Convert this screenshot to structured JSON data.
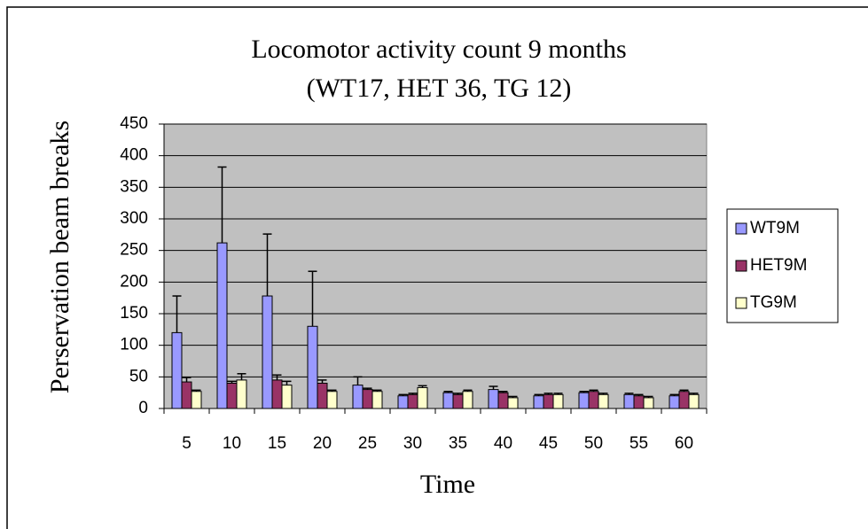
{
  "chart_data": {
    "type": "bar",
    "title": [
      "Locomotor activity count 9 months",
      "(WT17, HET 36, TG 12)"
    ],
    "x_label": "Time",
    "y_label": "Perservation beam breaks",
    "categories": [
      "5",
      "10",
      "15",
      "20",
      "25",
      "30",
      "35",
      "40",
      "45",
      "50",
      "55",
      "60"
    ],
    "series": [
      {
        "name": "WT9M",
        "color": "#9999ff",
        "values": [
          120,
          262,
          178,
          130,
          37,
          20,
          25,
          30,
          20,
          25,
          22,
          20
        ],
        "errors": [
          58,
          120,
          98,
          87,
          13,
          2,
          2,
          5,
          2,
          2,
          2,
          2
        ]
      },
      {
        "name": "HET9M",
        "color": "#993366",
        "values": [
          42,
          40,
          45,
          40,
          30,
          22,
          22,
          25,
          22,
          27,
          20,
          27
        ],
        "errors": [
          7,
          3,
          8,
          5,
          2,
          2,
          2,
          2,
          2,
          2,
          2,
          2
        ]
      },
      {
        "name": "TG9M",
        "color": "#ffffcc",
        "values": [
          27,
          45,
          37,
          27,
          27,
          33,
          27,
          17,
          22,
          22,
          17,
          22
        ],
        "errors": [
          2,
          10,
          6,
          2,
          2,
          3,
          2,
          2,
          2,
          2,
          2,
          2
        ]
      }
    ],
    "ylim": [
      0,
      450
    ],
    "yticks": [
      0,
      50,
      100,
      150,
      200,
      250,
      300,
      350,
      400,
      450
    ],
    "grid": true,
    "plot_background": "#c0c0c0",
    "legend": "right"
  }
}
